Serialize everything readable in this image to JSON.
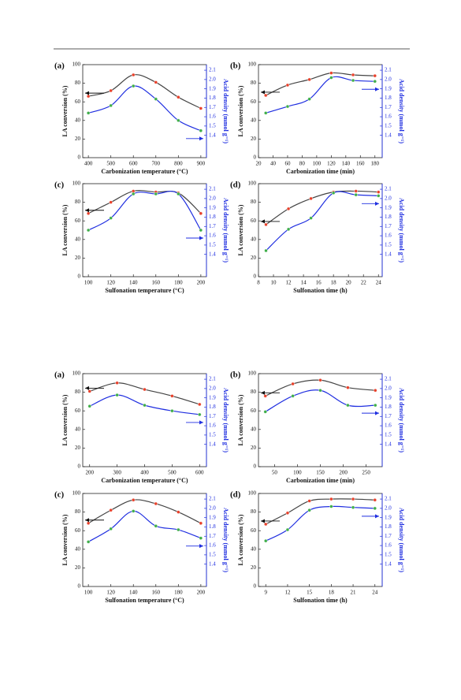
{
  "chart_data": [
    {
      "type": "line",
      "label": "(a)",
      "xlabel": "Carbonization temperature (°C)",
      "ylabel": "LA conversion (%)",
      "y2label": "Acid density (mmol g⁻¹)",
      "x": [
        400,
        500,
        600,
        700,
        800,
        900
      ],
      "xlim": [
        375,
        925
      ],
      "xticks": [
        400,
        500,
        600,
        700,
        800,
        900
      ],
      "ylim": [
        0,
        100
      ],
      "yticks": [
        0,
        20,
        40,
        60,
        80,
        100
      ],
      "y2lim": [
        1.16,
        2.16
      ],
      "y2ticks": [
        1.4,
        1.5,
        1.6,
        1.7,
        1.8,
        1.9,
        {
          "value": 2,
          "label": "2.0"
        },
        2.1
      ],
      "series": [
        {
          "color": "#444444",
          "marker_color": "#e8402a",
          "values": [
            66,
            72,
            89,
            81,
            65,
            53
          ]
        },
        {
          "axis": "y2",
          "color": "#1f2ee0",
          "marker_color": "#3fae49",
          "values": [
            1.64,
            1.72,
            1.93,
            1.79,
            1.56,
            1.45
          ]
        }
      ]
    },
    {
      "type": "line",
      "label": "(b)",
      "xlabel": "Carbonization time (min)",
      "ylabel": "LA conversion (%)",
      "y2label": "Acid density (mmol g⁻¹)",
      "x": [
        30,
        60,
        90,
        120,
        150,
        180
      ],
      "xlim": [
        20,
        190
      ],
      "xticks": [
        20,
        40,
        60,
        80,
        100,
        120,
        140,
        160,
        180
      ],
      "ylim": [
        0,
        100
      ],
      "yticks": [
        0,
        20,
        40,
        60,
        80,
        100
      ],
      "y2lim": [
        1.16,
        2.16
      ],
      "y2ticks": [
        1.4,
        1.5,
        1.6,
        1.7,
        1.8,
        1.9,
        {
          "value": 2,
          "label": "2.0"
        },
        2.1
      ],
      "series": [
        {
          "color": "#444444",
          "marker_color": "#e8402a",
          "values": [
            67,
            78,
            84,
            91,
            89,
            88
          ]
        },
        {
          "axis": "y2",
          "color": "#1f2ee0",
          "marker_color": "#3fae49",
          "values": [
            1.64,
            1.71,
            1.79,
            2.02,
            1.99,
            1.98
          ]
        }
      ]
    },
    {
      "type": "line",
      "label": "(c)",
      "xlabel": "Sulfonation temperature (°C)",
      "ylabel": "LA conversion (%)",
      "y2label": "Acid density (mmol g⁻¹)",
      "x": [
        100,
        120,
        140,
        160,
        180,
        200
      ],
      "xlim": [
        95,
        205
      ],
      "xticks": [
        100,
        120,
        140,
        160,
        180,
        200
      ],
      "ylim": [
        0,
        100
      ],
      "yticks": [
        0,
        20,
        40,
        60,
        80,
        100
      ],
      "y2lim": [
        1.16,
        2.16
      ],
      "y2ticks": [
        1.4,
        1.5,
        1.6,
        1.7,
        1.8,
        1.9,
        {
          "value": 2,
          "label": "2.0"
        },
        2.1
      ],
      "series": [
        {
          "color": "#444444",
          "marker_color": "#e8402a",
          "values": [
            68,
            80,
            92,
            91,
            90,
            68
          ]
        },
        {
          "axis": "y2",
          "color": "#1f2ee0",
          "marker_color": "#3fae49",
          "values": [
            1.66,
            1.79,
            2.05,
            2.05,
            2.05,
            1.66
          ]
        }
      ]
    },
    {
      "type": "line",
      "label": "(d)",
      "xlabel": "Sulfonation time (h)",
      "ylabel": "LA conversion (%)",
      "y2label": "Acid density (mmol g⁻¹)",
      "x": [
        9,
        12,
        15,
        18,
        21,
        24
      ],
      "xlim": [
        8,
        24.5
      ],
      "xticks": [
        8,
        10,
        12,
        14,
        16,
        18,
        20,
        22,
        24
      ],
      "ylim": [
        0,
        100
      ],
      "yticks": [
        0,
        20,
        40,
        60,
        80,
        100
      ],
      "y2lim": [
        1.16,
        2.16
      ],
      "y2ticks": [
        1.4,
        1.5,
        1.6,
        1.7,
        1.8,
        1.9,
        {
          "value": 2,
          "label": "2.0"
        },
        2.1
      ],
      "series": [
        {
          "color": "#444444",
          "marker_color": "#e8402a",
          "values": [
            56,
            73,
            84,
            91,
            92,
            91
          ]
        },
        {
          "axis": "y2",
          "color": "#1f2ee0",
          "marker_color": "#3fae49",
          "values": [
            1.44,
            1.67,
            1.79,
            2.06,
            2.04,
            2.03
          ]
        }
      ]
    },
    {
      "type": "line",
      "label": "(a)",
      "xlabel": "Carbonization temperature (°C)",
      "ylabel": "LA conversion (%)",
      "y2label": "Acid density (mmol g⁻¹)",
      "x": [
        200,
        300,
        400,
        500,
        600
      ],
      "xlim": [
        175,
        625
      ],
      "xticks": [
        200,
        300,
        400,
        500,
        600
      ],
      "ylim": [
        0,
        100
      ],
      "yticks": [
        0,
        20,
        40,
        60,
        80,
        100
      ],
      "y2lim": [
        1.16,
        2.16
      ],
      "y2ticks": [
        1.4,
        1.5,
        1.6,
        1.7,
        1.8,
        1.9,
        {
          "value": 2,
          "label": "2.0"
        },
        2.1
      ],
      "series": [
        {
          "color": "#444444",
          "marker_color": "#e8402a",
          "values": [
            81,
            90,
            83,
            76,
            67
          ]
        },
        {
          "axis": "y2",
          "color": "#1f2ee0",
          "marker_color": "#3fae49",
          "values": [
            1.81,
            1.93,
            1.82,
            1.76,
            1.72
          ]
        }
      ]
    },
    {
      "type": "line",
      "label": "(b)",
      "xlabel": "Carbonization time (min)",
      "ylabel": "LA conversion (%)",
      "y2label": "Acid density (mmol g⁻¹)",
      "x": [
        30,
        90,
        150,
        210,
        270
      ],
      "xlim": [
        15,
        285
      ],
      "xticks": [
        50,
        100,
        150,
        200,
        250
      ],
      "ylim": [
        0,
        100
      ],
      "yticks": [
        0,
        20,
        40,
        60,
        80,
        100
      ],
      "y2lim": [
        1.16,
        2.16
      ],
      "y2ticks": [
        1.4,
        1.5,
        1.6,
        1.7,
        1.8,
        1.9,
        {
          "value": 2,
          "label": "2.0"
        },
        2.1
      ],
      "series": [
        {
          "color": "#444444",
          "marker_color": "#e8402a",
          "values": [
            76,
            89,
            93,
            85,
            82
          ]
        },
        {
          "axis": "y2",
          "color": "#1f2ee0",
          "marker_color": "#3fae49",
          "values": [
            1.75,
            1.92,
            1.98,
            1.82,
            1.82
          ]
        }
      ]
    },
    {
      "type": "line",
      "label": "(c)",
      "xlabel": "Sulfonation temperature (°C)",
      "ylabel": "LA conversion (%)",
      "y2label": "Acid density (mmol g⁻¹)",
      "x": [
        100,
        120,
        140,
        160,
        180,
        200
      ],
      "xlim": [
        95,
        205
      ],
      "xticks": [
        100,
        120,
        140,
        160,
        180,
        200
      ],
      "ylim": [
        0,
        100
      ],
      "yticks": [
        0,
        20,
        40,
        60,
        80,
        100
      ],
      "y2lim": [
        1.16,
        2.16
      ],
      "y2ticks": [
        1.4,
        1.5,
        1.6,
        1.7,
        1.8,
        1.9,
        {
          "value": 2,
          "label": "2.0"
        },
        2.1
      ],
      "series": [
        {
          "color": "#444444",
          "marker_color": "#e8402a",
          "values": [
            68,
            82,
            93,
            89,
            80,
            68
          ]
        },
        {
          "axis": "y2",
          "color": "#1f2ee0",
          "marker_color": "#3fae49",
          "values": [
            1.64,
            1.78,
            1.97,
            1.81,
            1.77,
            1.68
          ]
        }
      ]
    },
    {
      "type": "line",
      "label": "(d)",
      "xlabel": "Sulfonation time (h)",
      "ylabel": "LA conversion (%)",
      "y2label": "Acid density (mmol g⁻¹)",
      "x": [
        9,
        12,
        15,
        18,
        21,
        24
      ],
      "xlim": [
        8,
        25
      ],
      "xticks": [
        9,
        12,
        15,
        18,
        21,
        24
      ],
      "ylim": [
        0,
        100
      ],
      "yticks": [
        0,
        20,
        40,
        60,
        80,
        100
      ],
      "y2lim": [
        1.16,
        2.16
      ],
      "y2ticks": [
        1.4,
        1.5,
        1.6,
        1.7,
        1.8,
        1.9,
        {
          "value": 2,
          "label": "2.0"
        },
        2.1
      ],
      "series": [
        {
          "color": "#444444",
          "marker_color": "#e8402a",
          "values": [
            67,
            79,
            92,
            94,
            94,
            93
          ]
        },
        {
          "axis": "y2",
          "color": "#1f2ee0",
          "marker_color": "#3fae49",
          "values": [
            1.65,
            1.77,
            1.98,
            2.02,
            2.01,
            2.0
          ]
        }
      ]
    }
  ]
}
